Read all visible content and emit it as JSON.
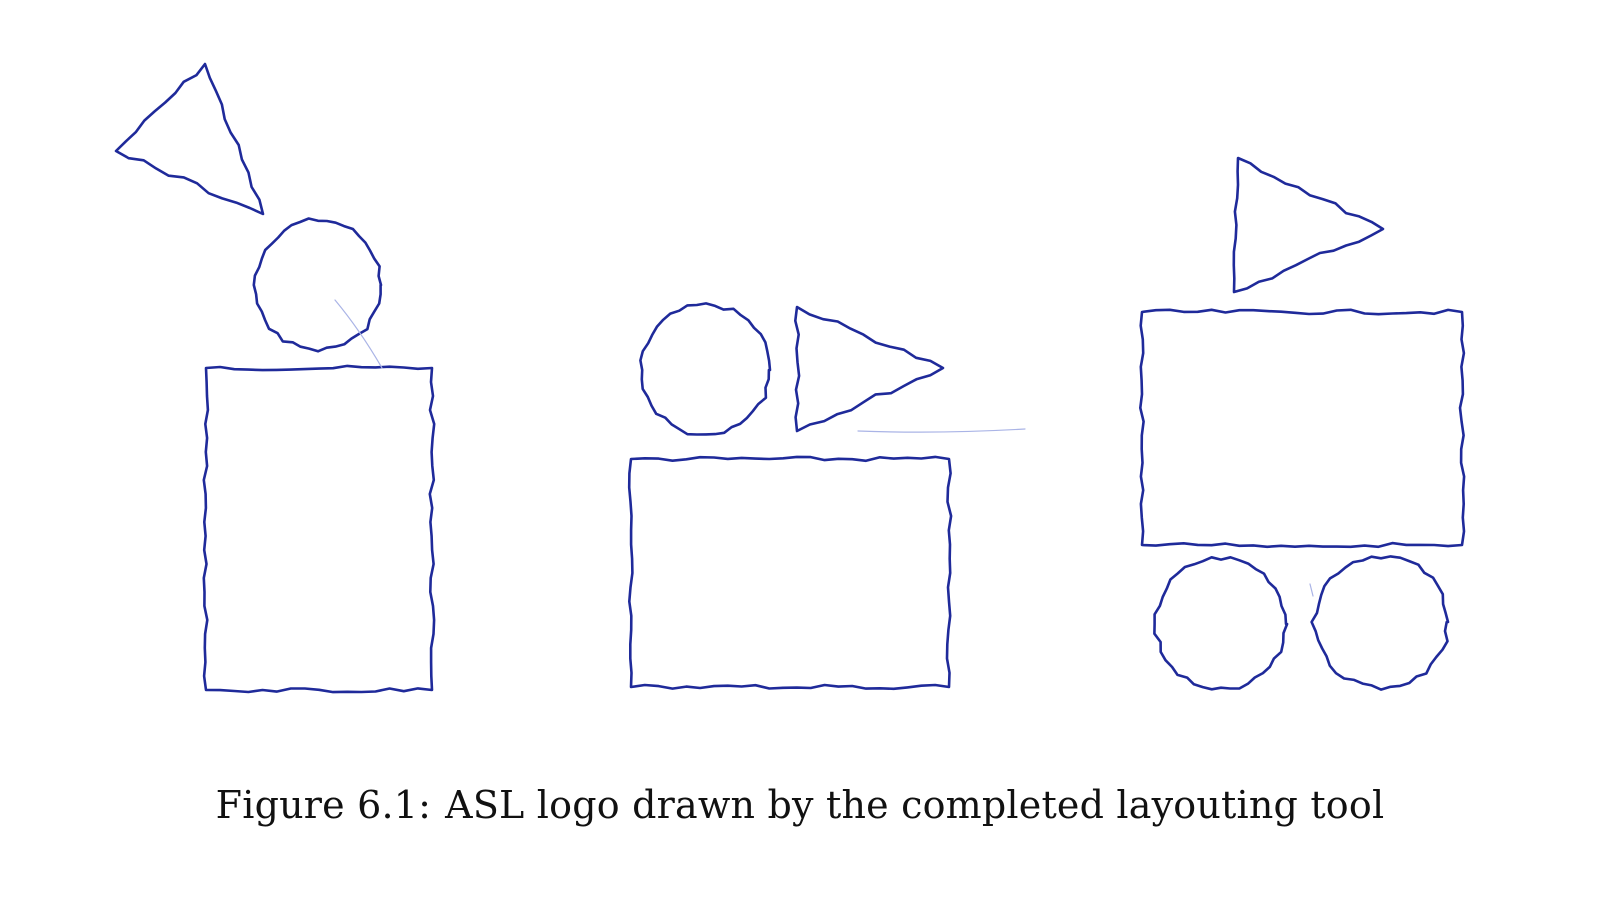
{
  "figure": {
    "caption_number": "Figure 6.1:",
    "caption_text": "ASL logo drawn by the completed layouting tool",
    "ink_color": "#1f2a9a",
    "faint_ink_color": "#aab4e6",
    "drawings": [
      {
        "name": "drawing-person",
        "shapes": [
          "triangle",
          "circle",
          "rectangle"
        ]
      },
      {
        "name": "drawing-cart",
        "shapes": [
          "circle",
          "triangle",
          "rectangle"
        ]
      },
      {
        "name": "drawing-vehicle",
        "shapes": [
          "triangle",
          "rectangle",
          "circle",
          "circle"
        ]
      }
    ]
  }
}
